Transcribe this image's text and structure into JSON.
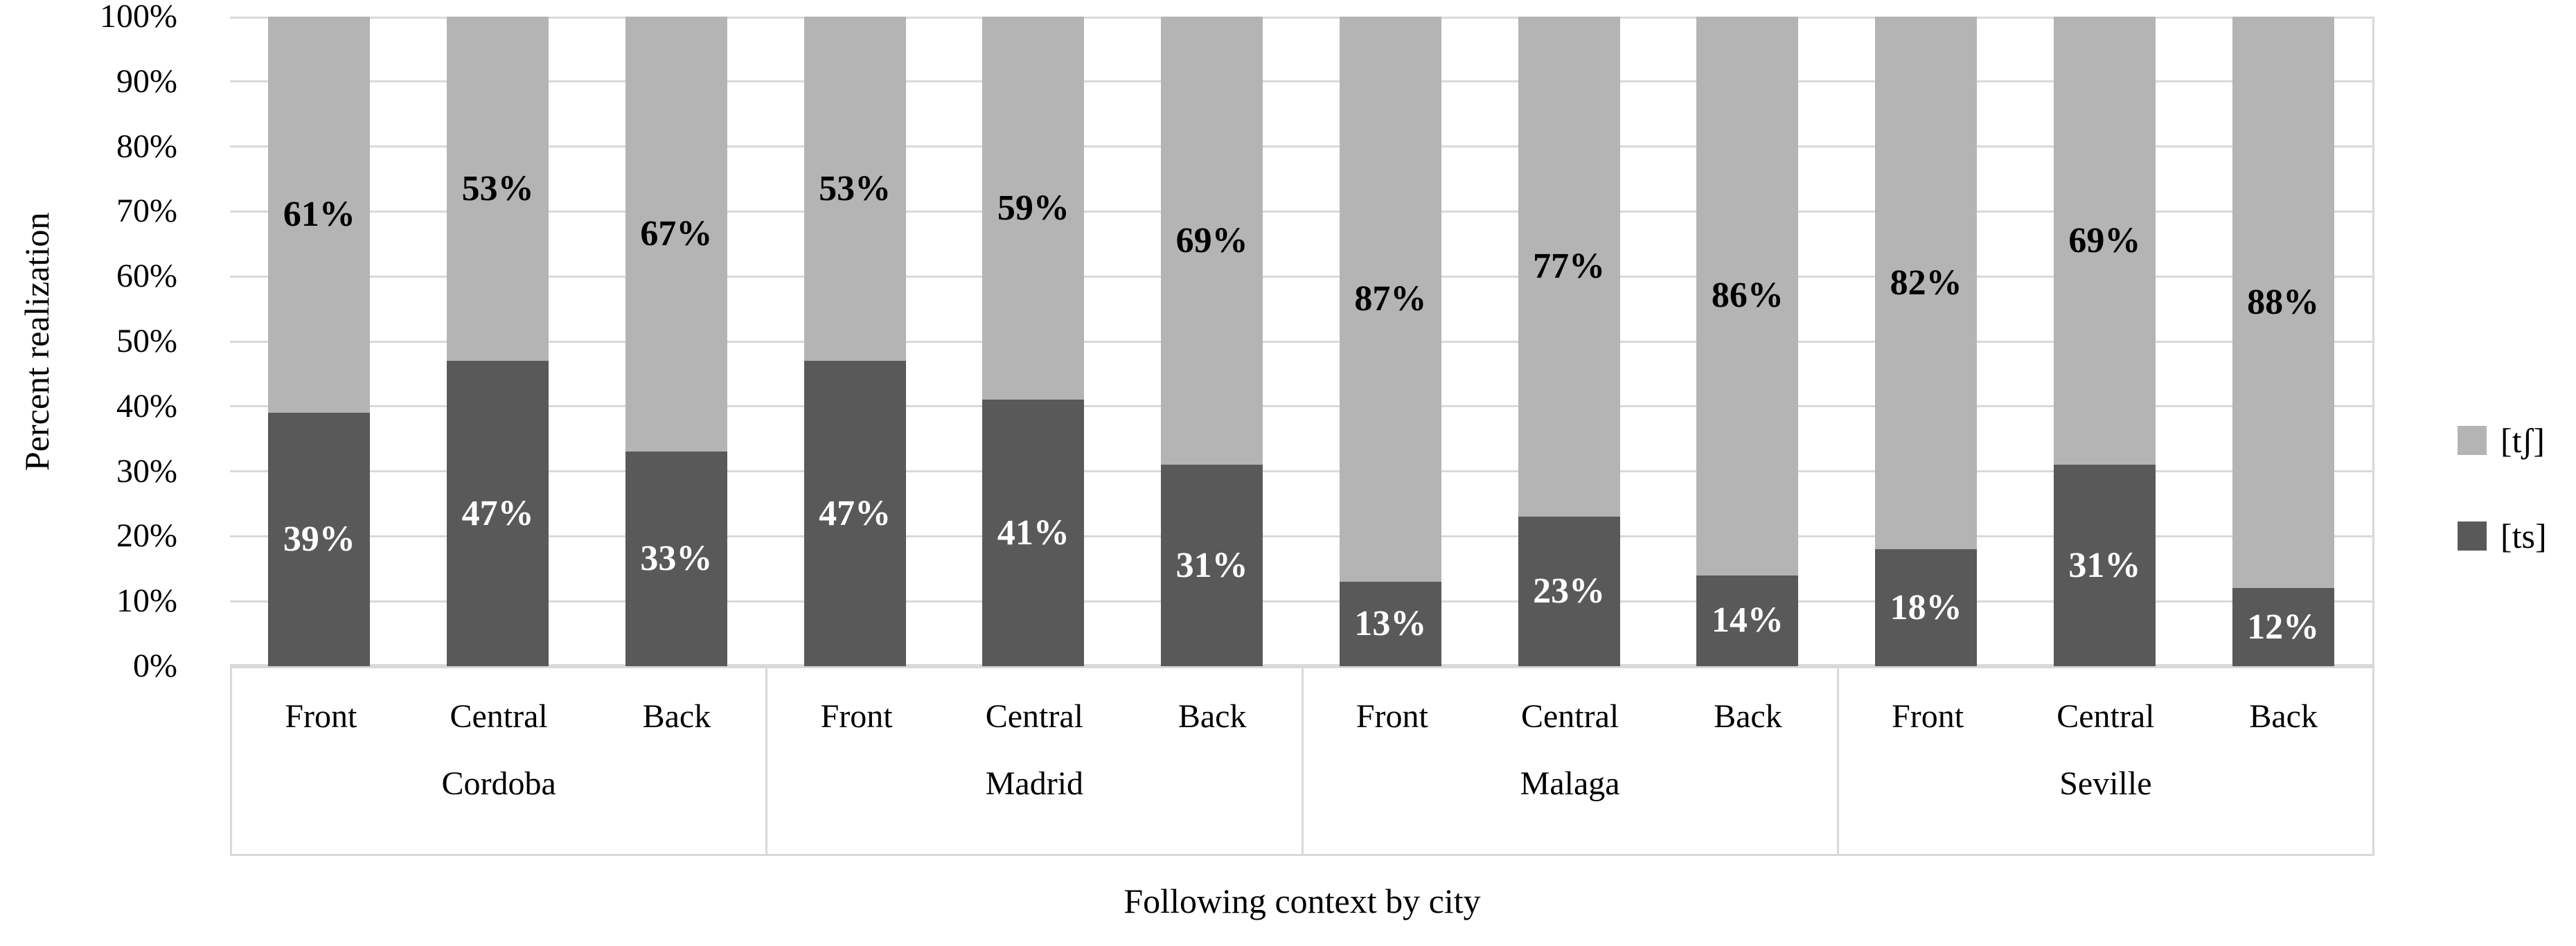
{
  "figure": {
    "y_axis_title": "Percent realization",
    "x_axis_title": "Following context by city"
  },
  "legend": {
    "position": "right",
    "items": [
      {
        "label": "[tʃ]",
        "color": "#b4b4b4"
      },
      {
        "label": "[ts]",
        "color": "#595959"
      }
    ]
  },
  "chart_data": {
    "type": "bar",
    "subtype": "stacked-100-percent",
    "title": "",
    "xlabel": "Following context by city",
    "ylabel": "Percent realization",
    "ylim": [
      0,
      100
    ],
    "yticks": [
      0,
      10,
      20,
      30,
      40,
      50,
      60,
      70,
      80,
      90,
      100
    ],
    "ytick_suffix": "%",
    "grid": true,
    "gridline_color": "#d9d9d9",
    "box_border_color": "#d9d9d9",
    "legend_position": "right",
    "groups": [
      "Cordoba",
      "Madrid",
      "Malaga",
      "Seville"
    ],
    "contexts": [
      "Front",
      "Central",
      "Back"
    ],
    "series": [
      {
        "name": "[ts]",
        "stack_position": "bottom",
        "color": "#595959",
        "label_text_color": "#ffffff",
        "values": [
          39,
          47,
          33,
          47,
          41,
          31,
          13,
          23,
          14,
          18,
          31,
          12
        ]
      },
      {
        "name": "[tʃ]",
        "stack_position": "top",
        "color": "#b4b4b4",
        "label_text_color": "#000000",
        "values": [
          61,
          53,
          67,
          53,
          59,
          69,
          87,
          77,
          86,
          82,
          69,
          88
        ]
      }
    ],
    "data_labels": "centered-in-segment, percent sign shown"
  }
}
